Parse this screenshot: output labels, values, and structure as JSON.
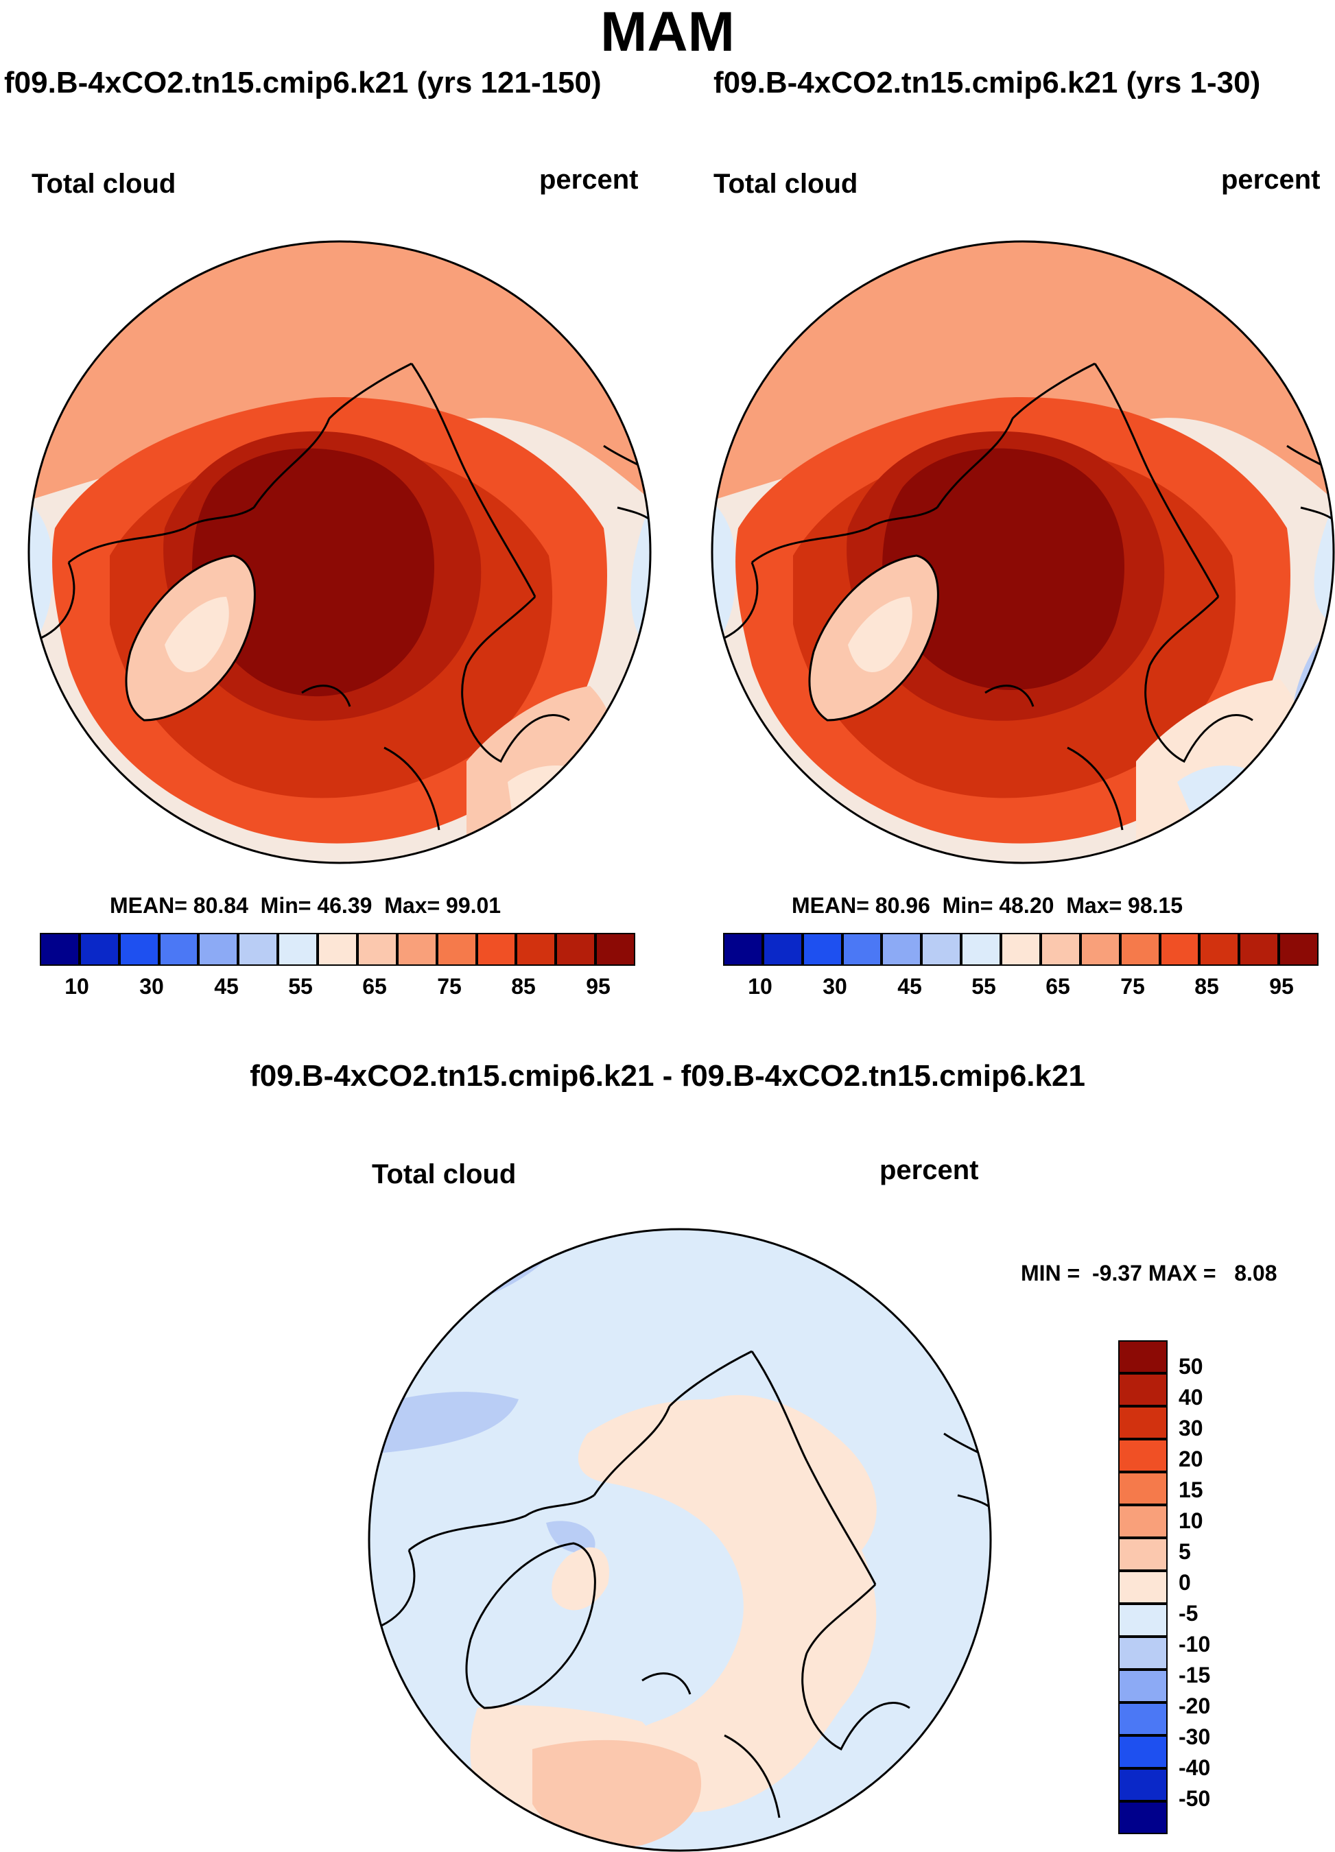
{
  "title": "MAM",
  "palette": {
    "c0": "#00008c",
    "c1": "#0a28c8",
    "c2": "#1e50f0",
    "c3": "#4b78f5",
    "c4": "#8caaf5",
    "c5": "#b9cdf5",
    "c6": "#dcebfa",
    "c7": "#fde6d6",
    "c8": "#fbc8ae",
    "c9": "#f9a07a",
    "c10": "#f57a4b",
    "c11": "#f05025",
    "c12": "#d2320f",
    "c13": "#b41e0a",
    "c14": "#8c0a05"
  },
  "panels": [
    {
      "title": "f09.B-4xCO2.tn15.cmip6.k21 (yrs 121-150)",
      "variable": "Total cloud",
      "units": "percent",
      "stats": {
        "mean_label": "MEAN=",
        "mean": "80.84",
        "min_label": "Min=",
        "min": "46.39",
        "max_label": "Max=",
        "max": "99.01"
      },
      "colorbar_ticks": [
        "10",
        "30",
        "45",
        "55",
        "65",
        "75",
        "85",
        "95"
      ]
    },
    {
      "title": "f09.B-4xCO2.tn15.cmip6.k21 (yrs 1-30)",
      "variable": "Total cloud",
      "units": "percent",
      "stats": {
        "mean_label": "MEAN=",
        "mean": "80.96",
        "min_label": "Min=",
        "min": "48.20",
        "max_label": "Max=",
        "max": "98.15"
      },
      "colorbar_ticks": [
        "10",
        "30",
        "45",
        "55",
        "65",
        "75",
        "85",
        "95"
      ]
    }
  ],
  "diff": {
    "title": "f09.B-4xCO2.tn15.cmip6.k21 - f09.B-4xCO2.tn15.cmip6.k21",
    "variable": "Total cloud",
    "units": "percent",
    "minmax_label": "MIN =  -9.37 MAX =   8.08",
    "colorbar_ticks": [
      "50",
      "40",
      "30",
      "20",
      "15",
      "10",
      "5",
      "0",
      "-5",
      "-10",
      "-15",
      "-20",
      "-30",
      "-40",
      "-50"
    ]
  },
  "chart_data": [
    {
      "type": "heatmap",
      "projection": "north polar stereographic",
      "title": "f09.B-4xCO2.tn15.cmip6.k21 (yrs 121-150)",
      "variable": "Total cloud",
      "units": "percent",
      "mean": 80.84,
      "min": 46.39,
      "max": 99.01,
      "levels": [
        10,
        20,
        30,
        40,
        45,
        50,
        55,
        60,
        65,
        70,
        75,
        80,
        85,
        90,
        95
      ],
      "colorbar_tick_labels": [
        10,
        30,
        45,
        55,
        65,
        75,
        85,
        95
      ]
    },
    {
      "type": "heatmap",
      "projection": "north polar stereographic",
      "title": "f09.B-4xCO2.tn15.cmip6.k21 (yrs 1-30)",
      "variable": "Total cloud",
      "units": "percent",
      "mean": 80.96,
      "min": 48.2,
      "max": 98.15,
      "levels": [
        10,
        20,
        30,
        40,
        45,
        50,
        55,
        60,
        65,
        70,
        75,
        80,
        85,
        90,
        95
      ],
      "colorbar_tick_labels": [
        10,
        30,
        45,
        55,
        65,
        75,
        85,
        95
      ]
    },
    {
      "type": "heatmap",
      "projection": "north polar stereographic",
      "title": "f09.B-4xCO2.tn15.cmip6.k21 - f09.B-4xCO2.tn15.cmip6.k21",
      "variable": "Total cloud",
      "units": "percent",
      "min": -9.37,
      "max": 8.08,
      "levels": [
        -50,
        -40,
        -30,
        -20,
        -15,
        -10,
        -5,
        0,
        5,
        10,
        15,
        20,
        30,
        40,
        50
      ]
    }
  ]
}
